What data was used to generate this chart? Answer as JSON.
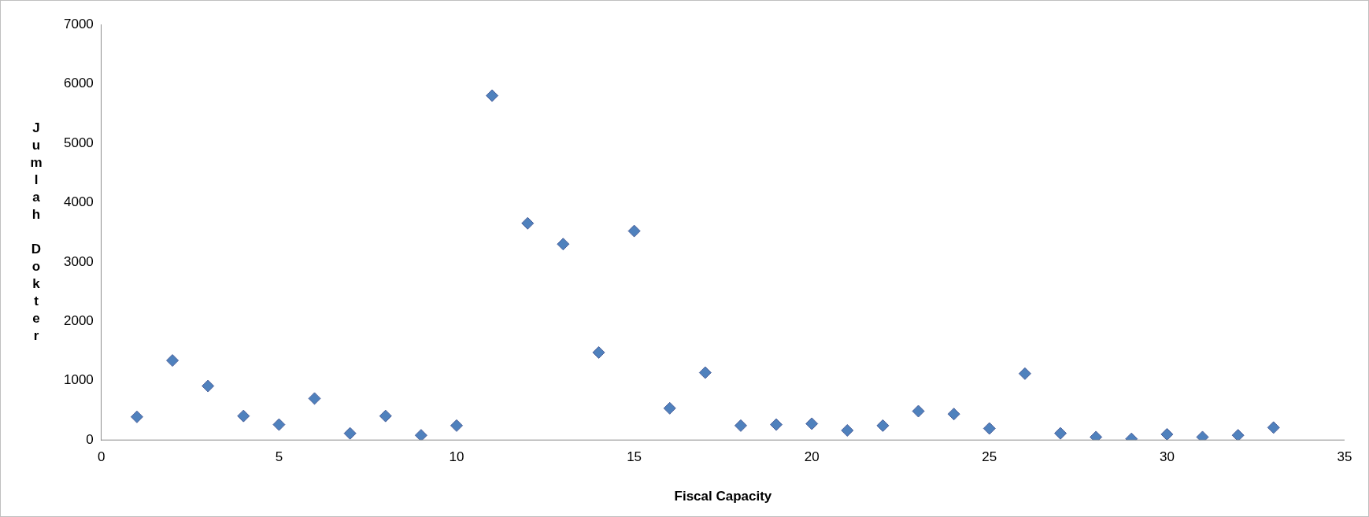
{
  "chart_data": {
    "type": "scatter",
    "xlabel": "Fiscal Capacity",
    "ylabel": "Jumlah Dokter",
    "x": [
      1,
      2,
      3,
      4,
      5,
      6,
      7,
      8,
      9,
      10,
      11,
      12,
      13,
      14,
      15,
      16,
      17,
      18,
      19,
      20,
      21,
      22,
      23,
      24,
      25,
      26,
      27,
      28,
      29,
      30,
      31,
      32,
      33
    ],
    "series": [
      {
        "color": "#4f81bd",
        "values": [
          390,
          1340,
          910,
          405,
          260,
          700,
          113,
          405,
          80,
          243,
          5800,
          3650,
          3300,
          1475,
          3520,
          535,
          1135,
          243,
          260,
          275,
          162,
          243,
          486,
          438,
          195,
          1118,
          113,
          50,
          20,
          97,
          50,
          80,
          210
        ]
      }
    ],
    "xlim": [
      0,
      35
    ],
    "xticks": [
      0,
      5,
      10,
      15,
      20,
      25,
      30,
      35
    ],
    "ylim": [
      0,
      7000
    ],
    "yticks": [
      0,
      1000,
      2000,
      3000,
      4000,
      5000,
      6000,
      7000
    ],
    "grid": false,
    "legend": false,
    "marker": "diamond"
  }
}
